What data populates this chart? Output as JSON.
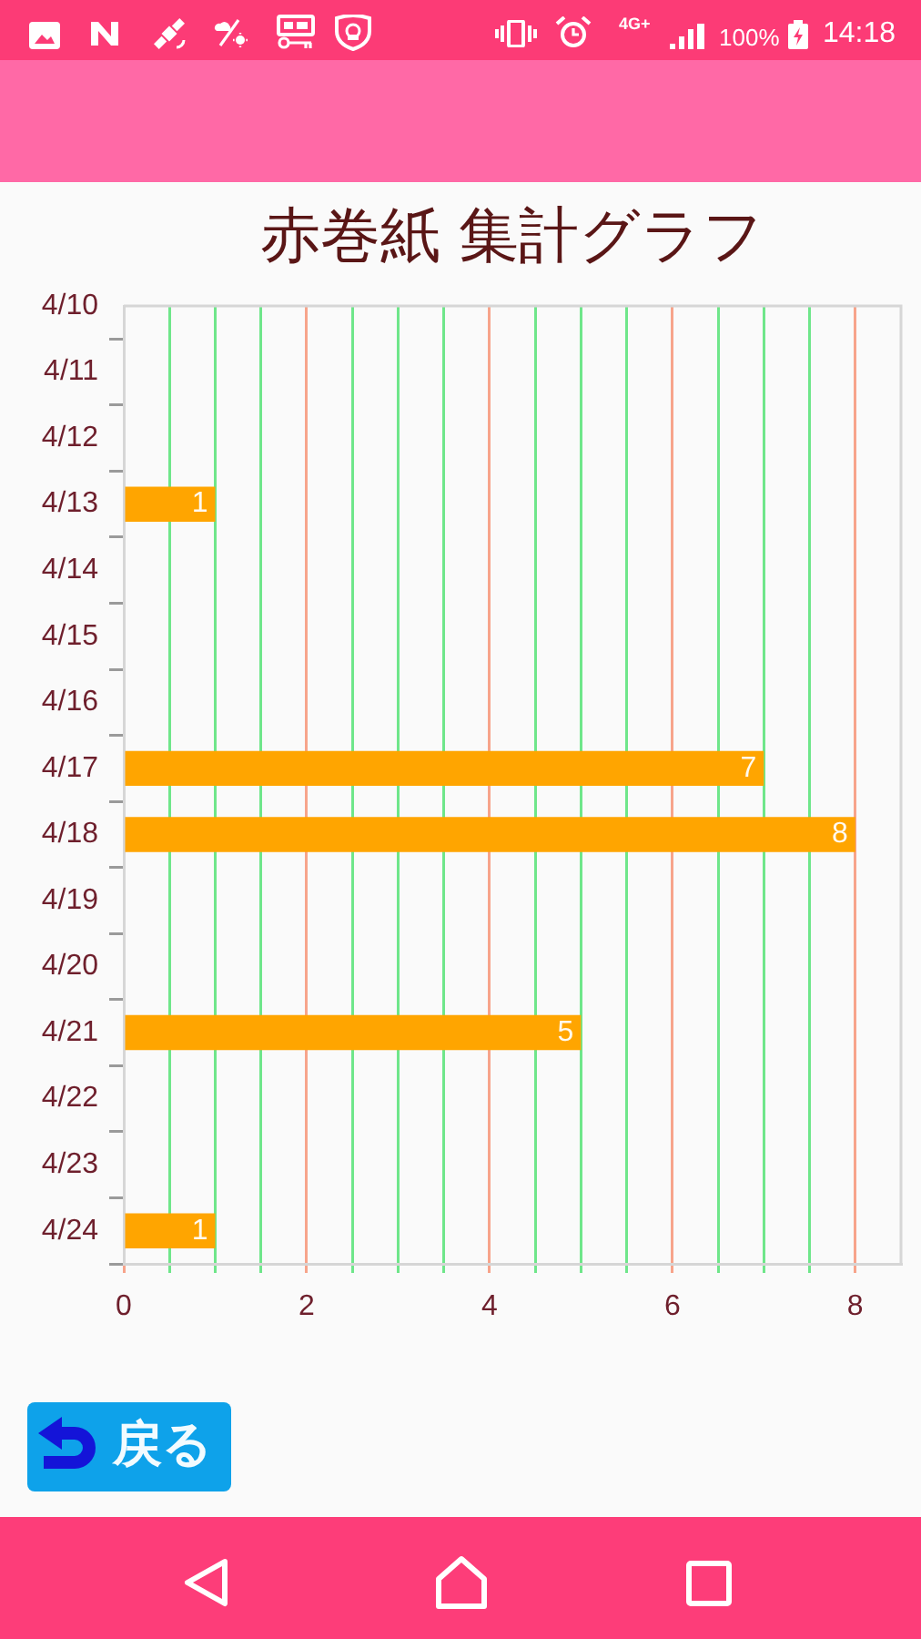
{
  "chart_data": {
    "type": "bar",
    "orientation": "horizontal",
    "title": "赤巻紙 集計グラフ",
    "categories": [
      "4/10",
      "4/11",
      "4/12",
      "4/13",
      "4/14",
      "4/15",
      "4/16",
      "4/17",
      "4/18",
      "4/19",
      "4/20",
      "4/21",
      "4/22",
      "4/23",
      "4/24"
    ],
    "values": [
      0,
      0,
      0,
      1,
      0,
      0,
      0,
      7,
      8,
      0,
      0,
      5,
      0,
      0,
      1
    ],
    "color": "#ffa500",
    "value_labels": [
      null,
      null,
      null,
      "1",
      null,
      null,
      null,
      "7",
      "8",
      null,
      null,
      "5",
      null,
      null,
      "1"
    ],
    "xlim": [
      0,
      8.5
    ],
    "xticks": [
      0,
      {
        "value": 0.5,
        "label": null
      },
      {
        "value": 1,
        "label": null
      },
      {
        "value": 1.5,
        "label": null
      },
      2,
      {
        "value": 2.5,
        "label": null
      },
      {
        "value": 3,
        "label": null
      },
      {
        "value": 3.5,
        "label": null
      },
      4,
      {
        "value": 4.5,
        "label": null
      },
      {
        "value": 5,
        "label": null
      },
      {
        "value": 5.5,
        "label": null
      },
      6,
      {
        "value": 6.5,
        "label": null
      },
      {
        "value": 7,
        "label": null
      },
      {
        "value": 7.5,
        "label": null
      },
      8
    ],
    "grid": "x",
    "annotations": [
      "4G+",
      "100%",
      "14:18",
      "戻る"
    ]
  }
}
